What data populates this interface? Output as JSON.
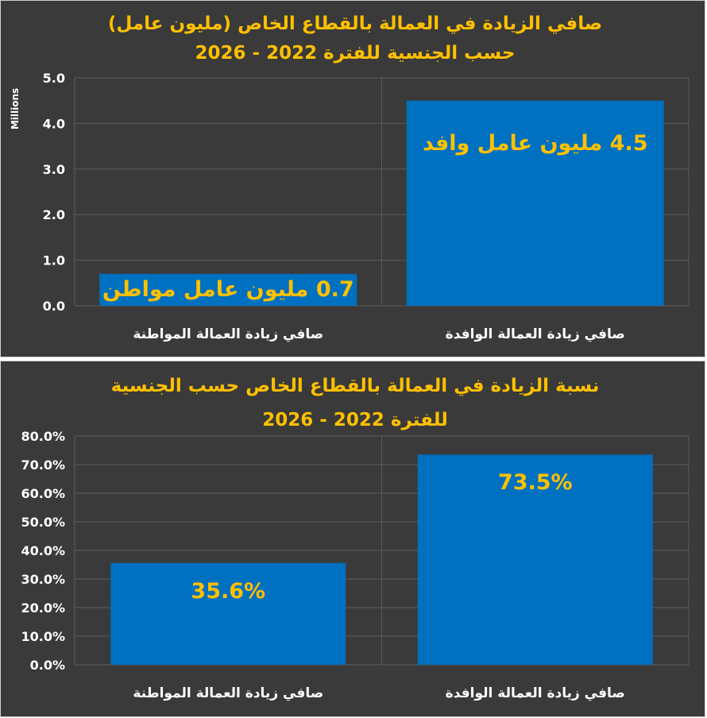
{
  "colors": {
    "background": "#3a3a3a",
    "bar": "#0070c0",
    "accent": "#ffc000",
    "text": "#ffffff",
    "grid": "#5e5e5e"
  },
  "chart_data": [
    {
      "type": "bar",
      "title": "صافي الزيادة في العمالة بالقطاع الخاص (مليون عامل)",
      "subtitle": "حسب الجنسية للفترة 2022 - 2026",
      "ylabel": "Millions",
      "categories": [
        "صافي زيادة العمالة المواطنة",
        "صافي زيادة العمالة الوافدة"
      ],
      "values": [
        0.7,
        4.5
      ],
      "data_labels": [
        "0.7 مليون عامل مواطن",
        "4.5 مليون عامل وافد"
      ],
      "ylim": [
        0,
        5
      ],
      "yticks": [
        "0.0",
        "1.0",
        "2.0",
        "3.0",
        "4.0",
        "5.0"
      ],
      "grid": true
    },
    {
      "type": "bar",
      "title": "نسبة الزيادة في العمالة بالقطاع الخاص حسب الجنسية",
      "subtitle": "للفترة 2022 - 2026",
      "categories": [
        "صافي زيادة العمالة المواطنة",
        "صافي زيادة العمالة الوافدة"
      ],
      "values": [
        35.6,
        73.5
      ],
      "data_labels": [
        "35.6%",
        "73.5%"
      ],
      "ylim": [
        0,
        80
      ],
      "yticks": [
        "0.0%",
        "10.0%",
        "20.0%",
        "30.0%",
        "40.0%",
        "50.0%",
        "60.0%",
        "70.0%",
        "80.0%"
      ],
      "grid": true
    }
  ]
}
